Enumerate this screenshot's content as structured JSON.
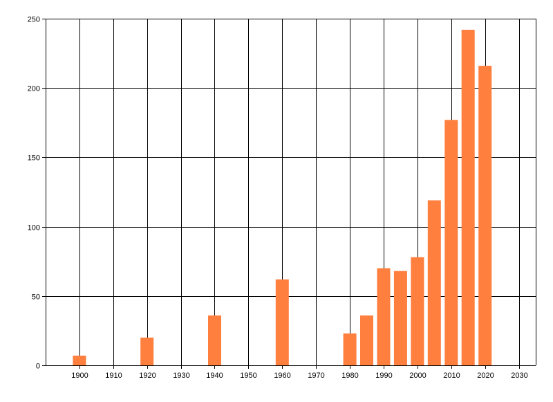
{
  "colors": {
    "bar": "#ff7f3f",
    "grid": "#000000",
    "axis": "#000000",
    "background": "#ffffff"
  },
  "chart_data": {
    "type": "bar",
    "title": "",
    "xlabel": "",
    "ylabel": "",
    "x": [
      1900,
      1920,
      1940,
      1960,
      1980,
      1985,
      1990,
      1995,
      2000,
      2005,
      2010,
      2015,
      2020
    ],
    "values": [
      7,
      20,
      36,
      62,
      23,
      36,
      70,
      68,
      78,
      119,
      177,
      242,
      216
    ],
    "xlim": [
      1890,
      2035
    ],
    "ylim": [
      0,
      250
    ],
    "x_ticks": [
      1900,
      1910,
      1920,
      1930,
      1940,
      1950,
      1960,
      1970,
      1980,
      1990,
      2000,
      2010,
      2020,
      2030
    ],
    "y_ticks": [
      0,
      50,
      100,
      150,
      200,
      250
    ],
    "grid": true,
    "legend": "none"
  }
}
